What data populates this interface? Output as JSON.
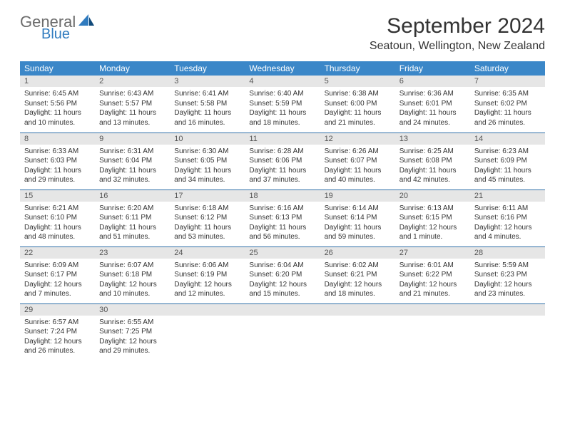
{
  "brand": {
    "general": "General",
    "blue": "Blue"
  },
  "header": {
    "month_title": "September 2024",
    "location": "Seatoun, Wellington, New Zealand"
  },
  "colors": {
    "header_bg": "#3b87c8",
    "header_text": "#ffffff",
    "daynum_bg": "#e6e6e6",
    "row_border": "#2f6fa8",
    "logo_gray": "#6b6b6b",
    "logo_blue": "#2f7bbf"
  },
  "weekdays": [
    "Sunday",
    "Monday",
    "Tuesday",
    "Wednesday",
    "Thursday",
    "Friday",
    "Saturday"
  ],
  "days": [
    {
      "n": "1",
      "sr": "6:45 AM",
      "ss": "5:56 PM",
      "dl": "11 hours and 10 minutes."
    },
    {
      "n": "2",
      "sr": "6:43 AM",
      "ss": "5:57 PM",
      "dl": "11 hours and 13 minutes."
    },
    {
      "n": "3",
      "sr": "6:41 AM",
      "ss": "5:58 PM",
      "dl": "11 hours and 16 minutes."
    },
    {
      "n": "4",
      "sr": "6:40 AM",
      "ss": "5:59 PM",
      "dl": "11 hours and 18 minutes."
    },
    {
      "n": "5",
      "sr": "6:38 AM",
      "ss": "6:00 PM",
      "dl": "11 hours and 21 minutes."
    },
    {
      "n": "6",
      "sr": "6:36 AM",
      "ss": "6:01 PM",
      "dl": "11 hours and 24 minutes."
    },
    {
      "n": "7",
      "sr": "6:35 AM",
      "ss": "6:02 PM",
      "dl": "11 hours and 26 minutes."
    },
    {
      "n": "8",
      "sr": "6:33 AM",
      "ss": "6:03 PM",
      "dl": "11 hours and 29 minutes."
    },
    {
      "n": "9",
      "sr": "6:31 AM",
      "ss": "6:04 PM",
      "dl": "11 hours and 32 minutes."
    },
    {
      "n": "10",
      "sr": "6:30 AM",
      "ss": "6:05 PM",
      "dl": "11 hours and 34 minutes."
    },
    {
      "n": "11",
      "sr": "6:28 AM",
      "ss": "6:06 PM",
      "dl": "11 hours and 37 minutes."
    },
    {
      "n": "12",
      "sr": "6:26 AM",
      "ss": "6:07 PM",
      "dl": "11 hours and 40 minutes."
    },
    {
      "n": "13",
      "sr": "6:25 AM",
      "ss": "6:08 PM",
      "dl": "11 hours and 42 minutes."
    },
    {
      "n": "14",
      "sr": "6:23 AM",
      "ss": "6:09 PM",
      "dl": "11 hours and 45 minutes."
    },
    {
      "n": "15",
      "sr": "6:21 AM",
      "ss": "6:10 PM",
      "dl": "11 hours and 48 minutes."
    },
    {
      "n": "16",
      "sr": "6:20 AM",
      "ss": "6:11 PM",
      "dl": "11 hours and 51 minutes."
    },
    {
      "n": "17",
      "sr": "6:18 AM",
      "ss": "6:12 PM",
      "dl": "11 hours and 53 minutes."
    },
    {
      "n": "18",
      "sr": "6:16 AM",
      "ss": "6:13 PM",
      "dl": "11 hours and 56 minutes."
    },
    {
      "n": "19",
      "sr": "6:14 AM",
      "ss": "6:14 PM",
      "dl": "11 hours and 59 minutes."
    },
    {
      "n": "20",
      "sr": "6:13 AM",
      "ss": "6:15 PM",
      "dl": "12 hours and 1 minute."
    },
    {
      "n": "21",
      "sr": "6:11 AM",
      "ss": "6:16 PM",
      "dl": "12 hours and 4 minutes."
    },
    {
      "n": "22",
      "sr": "6:09 AM",
      "ss": "6:17 PM",
      "dl": "12 hours and 7 minutes."
    },
    {
      "n": "23",
      "sr": "6:07 AM",
      "ss": "6:18 PM",
      "dl": "12 hours and 10 minutes."
    },
    {
      "n": "24",
      "sr": "6:06 AM",
      "ss": "6:19 PM",
      "dl": "12 hours and 12 minutes."
    },
    {
      "n": "25",
      "sr": "6:04 AM",
      "ss": "6:20 PM",
      "dl": "12 hours and 15 minutes."
    },
    {
      "n": "26",
      "sr": "6:02 AM",
      "ss": "6:21 PM",
      "dl": "12 hours and 18 minutes."
    },
    {
      "n": "27",
      "sr": "6:01 AM",
      "ss": "6:22 PM",
      "dl": "12 hours and 21 minutes."
    },
    {
      "n": "28",
      "sr": "5:59 AM",
      "ss": "6:23 PM",
      "dl": "12 hours and 23 minutes."
    },
    {
      "n": "29",
      "sr": "6:57 AM",
      "ss": "7:24 PM",
      "dl": "12 hours and 26 minutes."
    },
    {
      "n": "30",
      "sr": "6:55 AM",
      "ss": "7:25 PM",
      "dl": "12 hours and 29 minutes."
    }
  ],
  "labels": {
    "sunrise": "Sunrise:",
    "sunset": "Sunset:",
    "daylight": "Daylight:"
  },
  "layout": {
    "columns": 7,
    "rows": 5,
    "start_weekday_index": 0
  }
}
